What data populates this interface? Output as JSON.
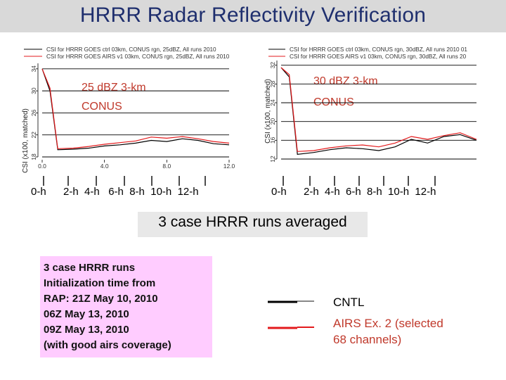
{
  "title": "HRRR Radar Reflectivity Verification",
  "subtitle": "3 case HRRR runs averaged",
  "info_lines": [
    "3 case HRRR runs",
    "Initialization time from",
    "RAP: 21Z May 10, 2010",
    "06Z May 13, 2010",
    "09Z May 13, 2010",
    "(with good airs coverage)"
  ],
  "key": {
    "cntl": "CNTL",
    "airs_line1": "AIRS Ex. 2 (selected",
    "airs_line2": "68 channels)",
    "cntl_color": "#000000",
    "airs_color": "#e31a1c"
  },
  "hour_labels_left": [
    "0-h",
    "2-h  4-h   6-h  8-h  10-h  12-h"
  ],
  "hour_labels_right": [
    "0-h",
    "2-h  4-h  6-h  8-h  10-h  12-h"
  ],
  "chart_data": [
    {
      "type": "line",
      "panel_label": [
        "25 dBZ  3-km",
        "CONUS"
      ],
      "legend": [
        "CSI for HRRR  GOES  ctrl  03km, CONUS rgn, 25dBZ, All runs 2010",
        "CSI for HRRR  GOES  AIRS  v1  03km, CONUS rgn, 25dBZ, All runs 2010"
      ],
      "ylabel": "CSI (x100, matched)",
      "yticks": [
        18,
        22,
        26,
        30,
        34
      ],
      "ylim": [
        18,
        35
      ],
      "xticks": [
        "0.0",
        "4.0",
        "8.0",
        "12.0"
      ],
      "xlim": [
        0,
        12
      ],
      "x": [
        0,
        0.5,
        1,
        2,
        3,
        4,
        5,
        6,
        7,
        8,
        9,
        10,
        11,
        12
      ],
      "series": [
        {
          "values": [
            34.0,
            30.0,
            19.3,
            19.4,
            19.6,
            20.0,
            20.2,
            20.5,
            21.0,
            20.8,
            21.3,
            21.0,
            20.4,
            20.2
          ]
        },
        {
          "values": [
            34.0,
            30.5,
            19.5,
            19.6,
            19.9,
            20.3,
            20.6,
            20.9,
            21.6,
            21.4,
            21.7,
            21.3,
            20.8,
            20.5
          ]
        }
      ]
    },
    {
      "type": "line",
      "panel_label": [
        "30 dBZ  3-km",
        "CONUS"
      ],
      "legend": [
        "CSI for HRRR  GOES  ctrl  03km, CONUS rgn, 30dBZ, All runs 2010 01",
        "CSI for HRRR  GOES  AIRS  v1  03km, CONUS rgn, 30dBZ, All runs 20"
      ],
      "ylabel": "CSI (x100, matched)",
      "yticks": [
        12,
        16,
        20,
        24,
        28,
        32
      ],
      "ylim": [
        12,
        33
      ],
      "xticks": [],
      "xlim": [
        0,
        12
      ],
      "x": [
        0,
        0.5,
        1,
        2,
        3,
        4,
        5,
        6,
        7,
        8,
        9,
        10,
        11,
        12
      ],
      "series": [
        {
          "values": [
            31.5,
            29.5,
            13.0,
            13.4,
            14.0,
            14.4,
            14.2,
            13.8,
            14.6,
            16.2,
            15.4,
            16.8,
            17.2,
            16.0
          ]
        },
        {
          "values": [
            31.5,
            30.0,
            13.6,
            13.8,
            14.4,
            14.8,
            15.0,
            14.6,
            15.4,
            16.8,
            16.2,
            17.0,
            17.6,
            16.2
          ]
        }
      ]
    }
  ]
}
